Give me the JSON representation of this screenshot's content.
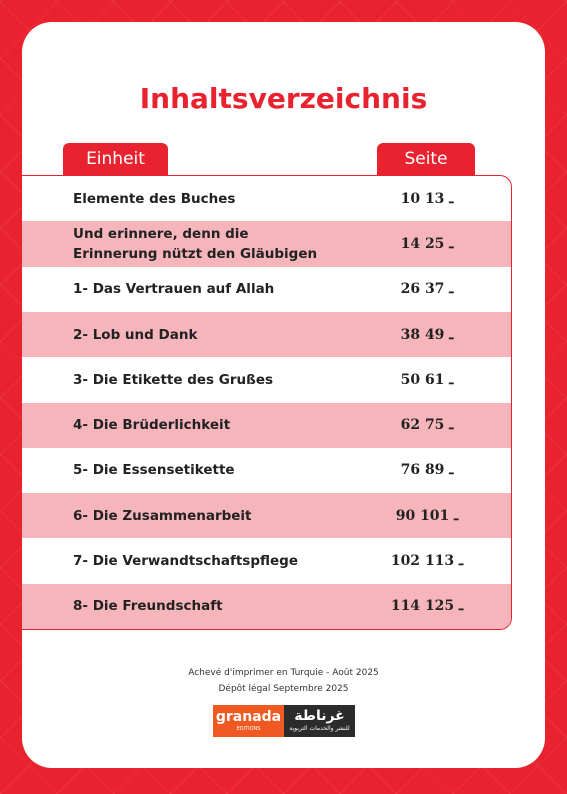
{
  "header": {
    "title": "Inhaltsverzeichnis",
    "column_unit": "Einheit",
    "column_page": "Seite"
  },
  "table": {
    "rows": [
      [
        "Elemente des Buches",
        "10 ـ 13"
      ],
      [
        "Und erinnere, denn die Erinnerung nützt den Gläubigen",
        "14 ـ 25"
      ],
      [
        "1- Das Vertrauen auf Allah",
        "26 ـ 37"
      ],
      [
        "2- Lob und Dank",
        "38 ـ 49"
      ],
      [
        "3- Die Etikette des Grußes",
        "50 ـ 61"
      ],
      [
        "4- Die Brüderlichkeit",
        "62 ـ 75"
      ],
      [
        "5- Die Essensetikette",
        "76 ـ 89"
      ],
      [
        "6- Die Zusammenarbeit",
        "90 ـ 101"
      ],
      [
        "7- Die Verwandtschaftspflege",
        "102 ـ 113"
      ],
      [
        "8- Die Freundschaft",
        "114 ـ 125"
      ]
    ]
  },
  "footer": {
    "printed": "Achevé d'imprimer en Turquie - Août 2025",
    "legal": "Dépôt légal Septembre 2025",
    "logo_name": "granada",
    "logo_sub": "EDITIONS",
    "logo_arabic": "غرناطة",
    "logo_arabic_sub": "للنشر والخدمات التربوية"
  }
}
